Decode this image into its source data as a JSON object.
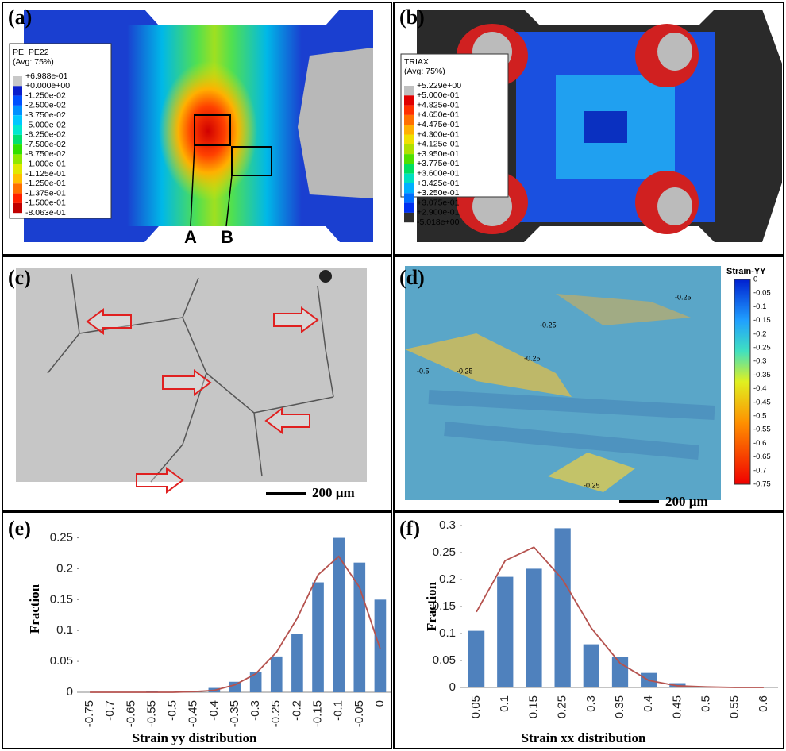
{
  "figure": {
    "a": {
      "label": "(a)",
      "legend_title": [
        "PE, PE22",
        "(Avg: 75%)"
      ],
      "legend": [
        "+6.988e-01",
        "+0.000e+00",
        "-1.250e-02",
        "-2.500e-02",
        "-3.750e-02",
        "-5.000e-02",
        "-6.250e-02",
        "-7.500e-02",
        "-8.750e-02",
        "-1.000e-01",
        "-1.125e-01",
        "-1.250e-01",
        "-1.375e-01",
        "-1.500e-01",
        "-8.063e-01"
      ],
      "markers": [
        "A",
        "B"
      ]
    },
    "b": {
      "label": "(b)",
      "legend_title": [
        "TRIAX",
        "(Avg: 75%)"
      ],
      "legend": [
        "+5.229e+00",
        "+5.000e-01",
        "+4.825e-01",
        "+4.650e-01",
        "+4.475e-01",
        "+4.300e-01",
        "+4.125e-01",
        "+3.950e-01",
        "+3.775e-01",
        "+3.600e-01",
        "+3.425e-01",
        "+3.250e-01",
        "+3.075e-01",
        "+2.900e-01",
        "-5.018e+00"
      ]
    },
    "c": {
      "label": "(c)",
      "scale_bar": "200 µm"
    },
    "d": {
      "label": "(d)",
      "colorbar_title": "Strain-YY",
      "colorbar": [
        "0",
        "-0.05",
        "-0.1",
        "-0.15",
        "-0.2",
        "-0.25",
        "-0.3",
        "-0.35",
        "-0.4",
        "-0.45",
        "-0.5",
        "-0.55",
        "-0.6",
        "-0.65",
        "-0.7",
        "-0.75"
      ],
      "contour_labels": [
        "-0.25",
        "-0.25",
        "-0.5",
        "-0.25",
        "-0.25",
        "-0.25"
      ],
      "scale_bar": "200 µm"
    },
    "e": {
      "label": "(e)"
    },
    "f": {
      "label": "(f)"
    }
  },
  "chart_data": [
    {
      "type": "bar",
      "x_label": "Strain yy distribution",
      "y_label": "Fraction",
      "categories": [
        "-0.75",
        "-0.7",
        "-0.65",
        "-0.55",
        "-0.5",
        "-0.45",
        "-0.4",
        "-0.35",
        "-0.3",
        "-0.25",
        "-0.2",
        "-0.15",
        "-0.1",
        "-0.05",
        "0"
      ],
      "series": [
        {
          "type": "bar",
          "color": "#4f81bd",
          "values": [
            0,
            0,
            0,
            0.002,
            0,
            0,
            0.007,
            0.017,
            0.033,
            0.058,
            0.095,
            0.178,
            0.25,
            0.21,
            0.15
          ]
        },
        {
          "type": "line",
          "color": "#b5524e",
          "values": [
            0,
            0,
            0,
            0,
            0,
            0.001,
            0.003,
            0.012,
            0.03,
            0.065,
            0.12,
            0.19,
            0.22,
            0.17,
            0.07
          ]
        }
      ],
      "ylim": [
        0,
        0.27
      ],
      "yticks": [
        0,
        0.05,
        0.1,
        0.15,
        0.2,
        0.25
      ]
    },
    {
      "type": "bar",
      "x_label": "Strain xx distribution",
      "y_label": "Fraction",
      "categories": [
        "0.05",
        "0.1",
        "0.15",
        "0.25",
        "0.3",
        "0.35",
        "0.4",
        "0.45",
        "0.5",
        "0.55",
        "0.6"
      ],
      "series": [
        {
          "type": "bar",
          "color": "#4f81bd",
          "values": [
            0.105,
            0.205,
            0.22,
            0.295,
            0.08,
            0.057,
            0.027,
            0.008,
            0,
            0,
            0
          ]
        },
        {
          "type": "line",
          "color": "#b5524e",
          "values": [
            0.14,
            0.235,
            0.26,
            0.2,
            0.11,
            0.045,
            0.013,
            0.003,
            0.001,
            0,
            0
          ]
        }
      ],
      "ylim": [
        0,
        0.3
      ],
      "yticks": [
        0,
        0.05,
        0.1,
        0.15,
        0.2,
        0.25,
        0.3
      ]
    }
  ]
}
